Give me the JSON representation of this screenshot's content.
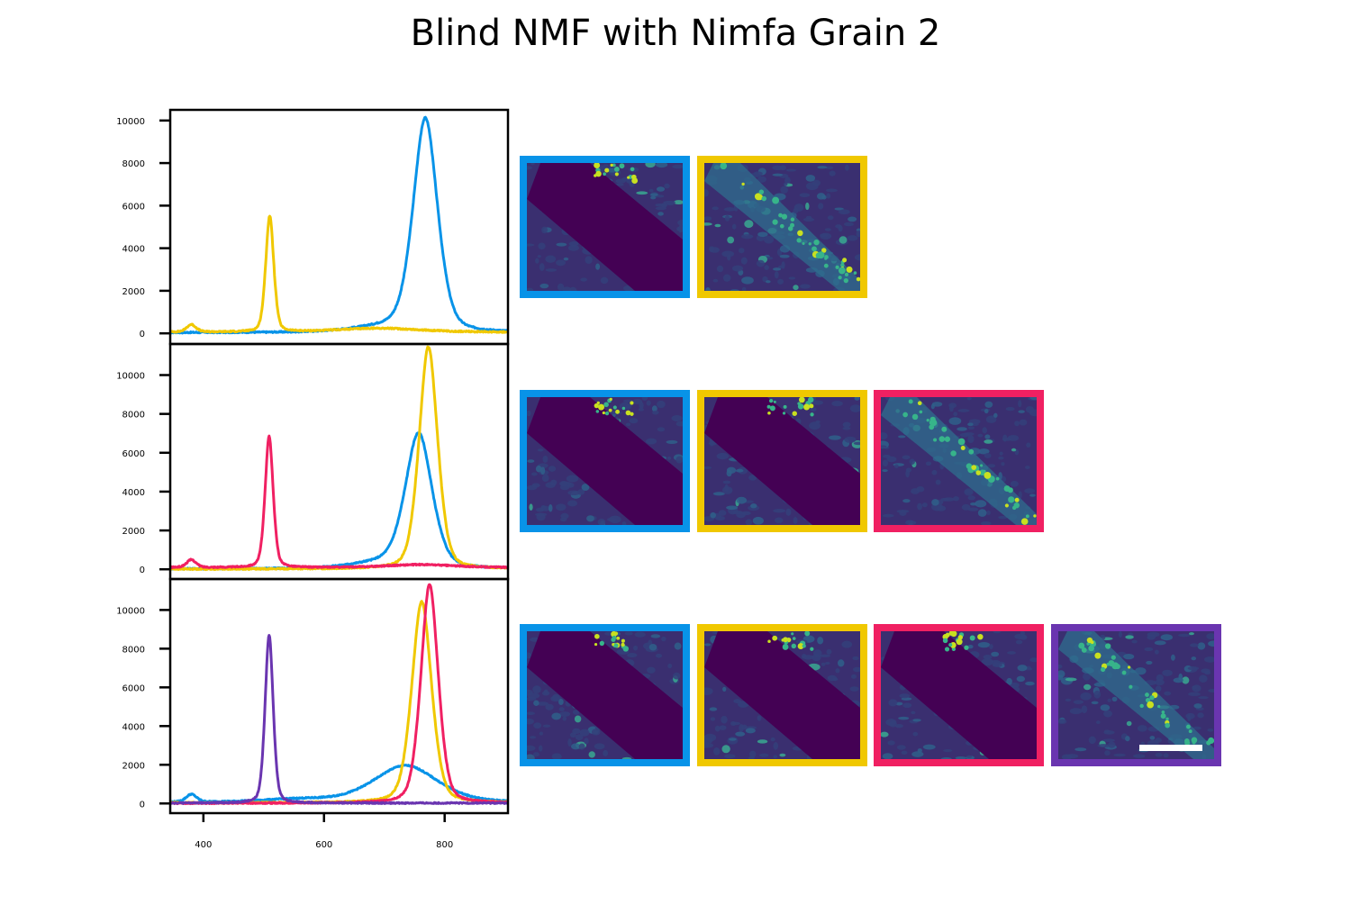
{
  "title": "Blind NMF with Nimfa Grain 2",
  "colors": {
    "blue": "#0893e8",
    "yellow": "#f0c800",
    "pink": "#f02062",
    "purple": "#6a35b0"
  },
  "chart_data": [
    {
      "type": "line",
      "xlim": [
        345,
        905
      ],
      "ylim": [
        -500,
        10500
      ],
      "yticks": [
        0,
        2000,
        4000,
        6000,
        8000,
        10000
      ],
      "xticks": [
        400,
        600,
        800
      ],
      "show_xtick_labels": false,
      "series": [
        {
          "color": "blue",
          "peaks": [
            {
              "c": 768,
              "w": 21,
              "h": 9950
            },
            {
              "c": 710,
              "w": 60,
              "h": 250
            }
          ],
          "baseline": 30
        },
        {
          "color": "yellow",
          "peaks": [
            {
              "c": 510,
              "w": 7,
              "h": 5450
            },
            {
              "c": 380,
              "w": 8,
              "h": 350
            },
            {
              "c": 690,
              "w": 70,
              "h": 180
            }
          ],
          "baseline": 60
        }
      ],
      "maps": [
        "blue",
        "yellow"
      ]
    },
    {
      "type": "line",
      "xlim": [
        345,
        905
      ],
      "ylim": [
        -500,
        11600
      ],
      "yticks": [
        0,
        2000,
        4000,
        6000,
        8000,
        10000
      ],
      "xticks": [
        400,
        600,
        800
      ],
      "show_xtick_labels": false,
      "series": [
        {
          "color": "blue",
          "peaks": [
            {
              "c": 757,
              "w": 23,
              "h": 6850
            },
            {
              "c": 700,
              "w": 55,
              "h": 300
            }
          ],
          "baseline": 20
        },
        {
          "color": "yellow",
          "peaks": [
            {
              "c": 773,
              "w": 16,
              "h": 11450
            }
          ],
          "baseline": 10
        },
        {
          "color": "pink",
          "peaks": [
            {
              "c": 509,
              "w": 7,
              "h": 6750
            },
            {
              "c": 380,
              "w": 8,
              "h": 400
            },
            {
              "c": 760,
              "w": 60,
              "h": 150
            }
          ],
          "baseline": 90
        }
      ],
      "maps": [
        "blue",
        "yellow",
        "pink"
      ]
    },
    {
      "type": "line",
      "xlim": [
        345,
        905
      ],
      "ylim": [
        -500,
        11600
      ],
      "yticks": [
        0,
        2000,
        4000,
        6000,
        8000,
        10000
      ],
      "xticks": [
        400,
        600,
        800
      ],
      "show_xtick_labels": true,
      "series": [
        {
          "color": "blue",
          "peaks": [
            {
              "c": 735,
              "w": 55,
              "h": 1900
            },
            {
              "c": 380,
              "w": 9,
              "h": 400
            },
            {
              "c": 560,
              "w": 60,
              "h": 150
            }
          ],
          "baseline": 60
        },
        {
          "color": "yellow",
          "peaks": [
            {
              "c": 762,
              "w": 17,
              "h": 10400
            }
          ],
          "baseline": 30
        },
        {
          "color": "pink",
          "peaks": [
            {
              "c": 775,
              "w": 15,
              "h": 11300
            }
          ],
          "baseline": 10
        },
        {
          "color": "purple",
          "peaks": [
            {
              "c": 509,
              "w": 7,
              "h": 8700
            }
          ],
          "baseline": 20
        }
      ],
      "maps": [
        "blue",
        "yellow",
        "pink",
        "purple"
      ]
    }
  ]
}
